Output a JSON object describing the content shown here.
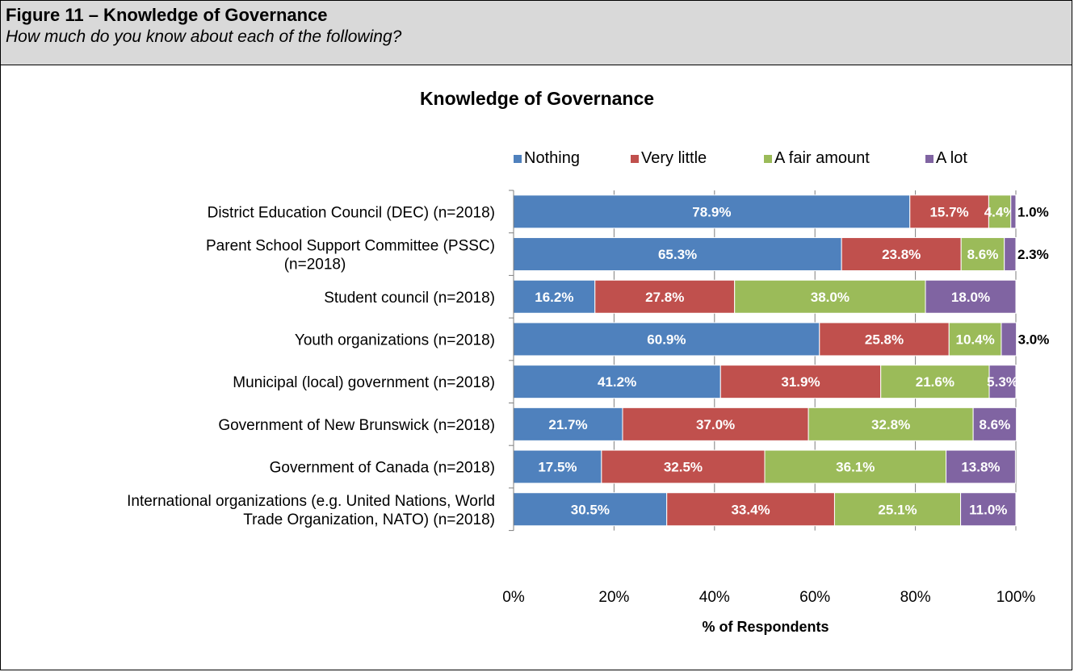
{
  "figure": {
    "title": "Figure 11 – Knowledge of Governance",
    "subtitle": "How much do you know about each of the following?"
  },
  "colors": {
    "nothing": "#4f81bd",
    "very_little": "#c0504d",
    "a_fair_amount": "#9bbb59",
    "a_lot": "#8064a2"
  },
  "chart_data": {
    "type": "bar",
    "orientation": "horizontal",
    "stacked": true,
    "title": "Knowledge of Governance",
    "xlabel": "% of Respondents",
    "ylabel": "",
    "xlim": [
      0,
      100
    ],
    "x_ticks": [
      "0%",
      "20%",
      "40%",
      "60%",
      "80%",
      "100%"
    ],
    "legend_position": "top",
    "categories": [
      "District Education Council (DEC)  (n=2018)",
      "Parent School Support Committee (PSSC)\n(n=2018)",
      "Student council (n=2018)",
      "Youth organizations (n=2018)",
      "Municipal (local) government (n=2018)",
      "Government of New Brunswick (n=2018)",
      "Government of Canada (n=2018)",
      "International organizations (e.g. United Nations, World\nTrade Organization, NATO) (n=2018)"
    ],
    "series": [
      {
        "name": "Nothing",
        "color": "#4f81bd",
        "values": [
          78.9,
          65.3,
          16.2,
          60.9,
          41.2,
          21.7,
          17.5,
          30.5
        ]
      },
      {
        "name": "Very little",
        "color": "#c0504d",
        "values": [
          15.7,
          23.8,
          27.8,
          25.8,
          31.9,
          37.0,
          32.5,
          33.4
        ]
      },
      {
        "name": "A fair amount",
        "color": "#9bbb59",
        "values": [
          4.4,
          8.6,
          38.0,
          10.4,
          21.6,
          32.8,
          36.1,
          25.1
        ]
      },
      {
        "name": "A lot",
        "color": "#8064a2",
        "values": [
          1.0,
          2.3,
          18.0,
          3.0,
          5.3,
          8.6,
          13.8,
          11.0
        ]
      }
    ]
  }
}
